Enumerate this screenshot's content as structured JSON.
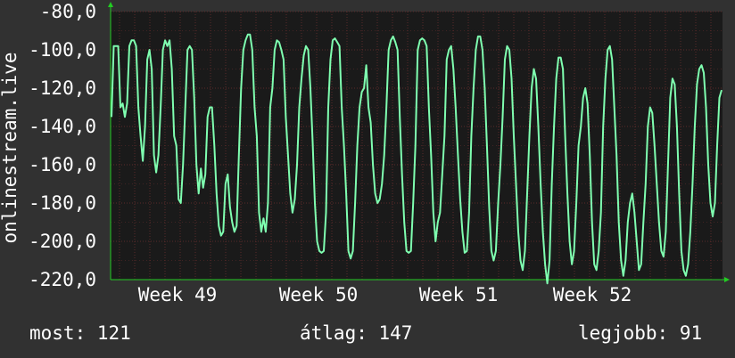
{
  "chart_data": {
    "type": "line",
    "ylabel": "onlinestream.live",
    "ylim": [
      -220,
      -80
    ],
    "y_ticks": [
      "-80,0",
      "-100,0",
      "-120,0",
      "-140,0",
      "-160,0",
      "-180,0",
      "-200,0",
      "-220,0"
    ],
    "x_ticks": [
      "Week 49",
      "Week 50",
      "Week 51",
      "Week 52"
    ],
    "grid": true,
    "colors": {
      "line": "#7fffb0",
      "background": "#1a1a1a",
      "grid": "#5a2a2a",
      "axis": "#22cc22"
    },
    "series": [
      {
        "values": [
          -135,
          -98,
          -98,
          -98,
          -130,
          -128,
          -135,
          -128,
          -98,
          -95,
          -95,
          -98,
          -130,
          -145,
          -158,
          -140,
          -105,
          -100,
          -110,
          -155,
          -164,
          -155,
          -130,
          -100,
          -95,
          -98,
          -95,
          -110,
          -145,
          -150,
          -178,
          -180,
          -160,
          -130,
          -100,
          -98,
          -100,
          -125,
          -160,
          -175,
          -162,
          -172,
          -165,
          -135,
          -130,
          -130,
          -150,
          -175,
          -192,
          -197,
          -195,
          -170,
          -165,
          -182,
          -190,
          -195,
          -192,
          -155,
          -120,
          -100,
          -95,
          -92,
          -92,
          -100,
          -130,
          -145,
          -185,
          -195,
          -188,
          -195,
          -180,
          -130,
          -120,
          -100,
          -95,
          -96,
          -100,
          -105,
          -135,
          -155,
          -175,
          -185,
          -178,
          -160,
          -130,
          -115,
          -103,
          -98,
          -100,
          -120,
          -148,
          -180,
          -200,
          -205,
          -206,
          -205,
          -185,
          -130,
          -105,
          -95,
          -94,
          -96,
          -98,
          -130,
          -150,
          -175,
          -205,
          -209,
          -205,
          -180,
          -150,
          -130,
          -122,
          -120,
          -108,
          -130,
          -138,
          -160,
          -175,
          -180,
          -178,
          -170,
          -155,
          -130,
          -100,
          -95,
          -93,
          -96,
          -100,
          -135,
          -165,
          -190,
          -205,
          -206,
          -205,
          -180,
          -150,
          -100,
          -95,
          -94,
          -95,
          -98,
          -130,
          -155,
          -185,
          -200,
          -190,
          -185,
          -165,
          -145,
          -105,
          -100,
          -98,
          -110,
          -130,
          -155,
          -178,
          -195,
          -206,
          -205,
          -185,
          -145,
          -120,
          -100,
          -93,
          -93,
          -100,
          -120,
          -150,
          -182,
          -205,
          -210,
          -205,
          -180,
          -160,
          -135,
          -105,
          -98,
          -100,
          -115,
          -145,
          -170,
          -195,
          -210,
          -215,
          -205,
          -175,
          -145,
          -120,
          -110,
          -115,
          -140,
          -170,
          -195,
          -212,
          -222,
          -210,
          -170,
          -140,
          -115,
          -104,
          -104,
          -110,
          -145,
          -175,
          -200,
          -212,
          -205,
          -180,
          -150,
          -140,
          -125,
          -120,
          -128,
          -155,
          -190,
          -212,
          -215,
          -205,
          -185,
          -140,
          -115,
          -100,
          -98,
          -105,
          -130,
          -155,
          -190,
          -210,
          -218,
          -210,
          -190,
          -180,
          -175,
          -185,
          -200,
          -215,
          -212,
          -190,
          -170,
          -140,
          -130,
          -133,
          -150,
          -170,
          -190,
          -205,
          -208,
          -195,
          -160,
          -125,
          -115,
          -118,
          -140,
          -175,
          -205,
          -215,
          -218,
          -212,
          -195,
          -170,
          -140,
          -118,
          -110,
          -108,
          -112,
          -130,
          -160,
          -180,
          -187,
          -180,
          -150,
          -125,
          -121
        ]
      }
    ]
  },
  "footer": {
    "now_label": "most:",
    "now_value": "121",
    "avg_label": "átlag:",
    "avg_value": "147",
    "best_label": "legjobb:",
    "best_value": "91"
  }
}
